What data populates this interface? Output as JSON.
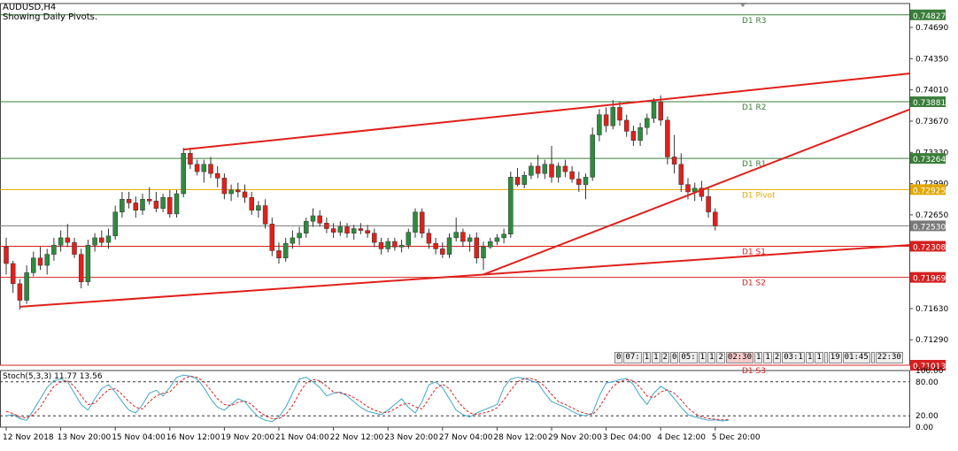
{
  "header": {
    "symbol": "AUDUSD,H4",
    "note": "Showing Daily Pivots."
  },
  "timer_boxes": [
    "0",
    "07:",
    "1",
    "1",
    "2",
    "0",
    "05:",
    "1",
    "1",
    "2",
    "02:30",
    "1",
    "1",
    "2",
    "03:1",
    "1",
    "1",
    "",
    "19",
    "01:45",
    "",
    "22:30"
  ],
  "colors": {
    "bull": "#2e8b3e",
    "bear": "#e0201b",
    "wick": "#333333",
    "pivot_resistance": "#3a7d3a",
    "pivot_level": "#e0a800",
    "pivot_support": "#d42020",
    "trendline": "#e0201b",
    "stoch_main": "#40a8c8",
    "stoch_signal": "#e02020",
    "current_price": "#7a7a7a"
  },
  "chart_data": {
    "type": "candlestick",
    "title": "AUDUSD,H4",
    "subtitle": "Showing Daily Pivots.",
    "ylim": [
      0.71013,
      0.7495
    ],
    "price_ticks": [
      "0.74690",
      "0.74350",
      "0.74010",
      "0.73670",
      "0.73330",
      "0.72990",
      "0.72650",
      "0.71630",
      "0.71290"
    ],
    "time_labels": [
      "12 Nov 2018",
      "13 Nov 20:00",
      "15 Nov 04:00",
      "16 Nov 12:00",
      "19 Nov 20:00",
      "21 Nov 04:00",
      "22 Nov 12:00",
      "23 Nov 20:00",
      "27 Nov 04:00",
      "28 Nov 12:00",
      "29 Nov 20:00",
      "3 Dec 04:00",
      "4 Dec 12:00",
      "5 Dec 20:00"
    ],
    "time_label_index": [
      0,
      8,
      16,
      24,
      32,
      40,
      48,
      56,
      64,
      72,
      80,
      88,
      96,
      104
    ],
    "pivots": [
      {
        "label": "D1 R3",
        "value": 0.74827,
        "kind": "resistance"
      },
      {
        "label": "D1 R2",
        "value": 0.73881,
        "kind": "resistance"
      },
      {
        "label": "D1 R1",
        "value": 0.73264,
        "kind": "resistance"
      },
      {
        "label": "D1 Pivot",
        "value": 0.72925,
        "kind": "pivot"
      },
      {
        "label": "D1 S1",
        "value": 0.72308,
        "kind": "support"
      },
      {
        "label": "D1 S2",
        "value": 0.71969,
        "kind": "support"
      },
      {
        "label": "D1 S3",
        "value": 0.71013,
        "kind": "support"
      }
    ],
    "current_price": "0.72530",
    "trendlines": [
      {
        "i1": 2,
        "p1": 0.7165,
        "i2": 70,
        "p2": 0.72,
        "extend": true
      },
      {
        "i1": 26,
        "p1": 0.7336,
        "i2": 98,
        "p2": 0.7392,
        "extend": true
      },
      {
        "i1": 70,
        "p1": 0.72,
        "i2": 102,
        "p2": 0.7292,
        "extend": true
      }
    ],
    "candles": [
      [
        0.723,
        0.724,
        0.72,
        0.7212
      ],
      [
        0.7212,
        0.7215,
        0.718,
        0.719
      ],
      [
        0.719,
        0.7195,
        0.7162,
        0.7172
      ],
      [
        0.7172,
        0.721,
        0.7168,
        0.7202
      ],
      [
        0.7202,
        0.7225,
        0.7198,
        0.7218
      ],
      [
        0.7218,
        0.723,
        0.7205,
        0.721
      ],
      [
        0.721,
        0.7228,
        0.72,
        0.7222
      ],
      [
        0.7222,
        0.724,
        0.7215,
        0.7232
      ],
      [
        0.7232,
        0.7248,
        0.7225,
        0.724
      ],
      [
        0.724,
        0.7255,
        0.723,
        0.7235
      ],
      [
        0.7235,
        0.724,
        0.7218,
        0.7222
      ],
      [
        0.7222,
        0.7228,
        0.7185,
        0.7192
      ],
      [
        0.7192,
        0.7238,
        0.7188,
        0.7232
      ],
      [
        0.7232,
        0.7245,
        0.7225,
        0.724
      ],
      [
        0.724,
        0.7248,
        0.723,
        0.7235
      ],
      [
        0.7235,
        0.725,
        0.7228,
        0.7242
      ],
      [
        0.7242,
        0.7275,
        0.7238,
        0.7268
      ],
      [
        0.7268,
        0.729,
        0.7262,
        0.7282
      ],
      [
        0.7282,
        0.729,
        0.7272,
        0.7278
      ],
      [
        0.7278,
        0.7285,
        0.7262,
        0.727
      ],
      [
        0.727,
        0.7288,
        0.7265,
        0.7282
      ],
      [
        0.7282,
        0.7295,
        0.7276,
        0.728
      ],
      [
        0.728,
        0.729,
        0.7268,
        0.7272
      ],
      [
        0.7272,
        0.7288,
        0.7268,
        0.7284
      ],
      [
        0.7284,
        0.7292,
        0.7262,
        0.7266
      ],
      [
        0.7266,
        0.7292,
        0.7262,
        0.7288
      ],
      [
        0.7288,
        0.7338,
        0.7284,
        0.7332
      ],
      [
        0.7332,
        0.7338,
        0.7315,
        0.732
      ],
      [
        0.732,
        0.7325,
        0.7308,
        0.7312
      ],
      [
        0.7312,
        0.7325,
        0.73,
        0.732
      ],
      [
        0.732,
        0.7328,
        0.7305,
        0.731
      ],
      [
        0.731,
        0.7318,
        0.7295,
        0.7305
      ],
      [
        0.7305,
        0.731,
        0.7282,
        0.7288
      ],
      [
        0.7288,
        0.7298,
        0.728,
        0.7292
      ],
      [
        0.7292,
        0.73,
        0.7284,
        0.729
      ],
      [
        0.729,
        0.7298,
        0.7278,
        0.7284
      ],
      [
        0.7284,
        0.729,
        0.7265,
        0.727
      ],
      [
        0.727,
        0.728,
        0.7262,
        0.7275
      ],
      [
        0.7275,
        0.7282,
        0.725,
        0.7255
      ],
      [
        0.7255,
        0.7262,
        0.722,
        0.7226
      ],
      [
        0.7226,
        0.7235,
        0.7212,
        0.7218
      ],
      [
        0.7218,
        0.724,
        0.7214,
        0.7234
      ],
      [
        0.7234,
        0.7248,
        0.7228,
        0.724
      ],
      [
        0.724,
        0.7252,
        0.7232,
        0.7245
      ],
      [
        0.7245,
        0.7262,
        0.724,
        0.7258
      ],
      [
        0.7258,
        0.7272,
        0.7252,
        0.7264
      ],
      [
        0.7264,
        0.727,
        0.7252,
        0.7256
      ],
      [
        0.7256,
        0.7262,
        0.7245,
        0.725
      ],
      [
        0.725,
        0.7256,
        0.724,
        0.7246
      ],
      [
        0.7246,
        0.7258,
        0.7242,
        0.7252
      ],
      [
        0.7252,
        0.7256,
        0.724,
        0.7245
      ],
      [
        0.7245,
        0.7254,
        0.7238,
        0.725
      ],
      [
        0.725,
        0.7256,
        0.7244,
        0.7248
      ],
      [
        0.7248,
        0.7254,
        0.724,
        0.7245
      ],
      [
        0.7245,
        0.725,
        0.723,
        0.7235
      ],
      [
        0.7235,
        0.724,
        0.7222,
        0.7228
      ],
      [
        0.7228,
        0.724,
        0.7224,
        0.7236
      ],
      [
        0.7236,
        0.724,
        0.7226,
        0.723
      ],
      [
        0.723,
        0.7238,
        0.7224,
        0.7232
      ],
      [
        0.7232,
        0.725,
        0.7228,
        0.7246
      ],
      [
        0.7246,
        0.7272,
        0.724,
        0.7268
      ],
      [
        0.7268,
        0.7272,
        0.724,
        0.7245
      ],
      [
        0.7245,
        0.725,
        0.7228,
        0.7234
      ],
      [
        0.7234,
        0.724,
        0.7222,
        0.7228
      ],
      [
        0.7228,
        0.7235,
        0.7218,
        0.7222
      ],
      [
        0.7222,
        0.7245,
        0.7218,
        0.724
      ],
      [
        0.724,
        0.7262,
        0.7236,
        0.7246
      ],
      [
        0.7246,
        0.725,
        0.723,
        0.7236
      ],
      [
        0.7236,
        0.7244,
        0.7225,
        0.724
      ],
      [
        0.724,
        0.7246,
        0.7212,
        0.7218
      ],
      [
        0.7218,
        0.7236,
        0.7205,
        0.723
      ],
      [
        0.723,
        0.724,
        0.7228,
        0.7236
      ],
      [
        0.7236,
        0.7244,
        0.7232,
        0.724
      ],
      [
        0.724,
        0.725,
        0.7234,
        0.7244
      ],
      [
        0.7244,
        0.7312,
        0.724,
        0.7306
      ],
      [
        0.7306,
        0.7316,
        0.7296,
        0.7298
      ],
      [
        0.7298,
        0.7312,
        0.7294,
        0.7308
      ],
      [
        0.7308,
        0.7322,
        0.7304,
        0.7318
      ],
      [
        0.7318,
        0.733,
        0.7305,
        0.731
      ],
      [
        0.731,
        0.7325,
        0.7304,
        0.732
      ],
      [
        0.732,
        0.734,
        0.73,
        0.7306
      ],
      [
        0.7306,
        0.7322,
        0.73,
        0.7318
      ],
      [
        0.7318,
        0.7325,
        0.7306,
        0.7312
      ],
      [
        0.7312,
        0.7318,
        0.73,
        0.7304
      ],
      [
        0.7304,
        0.7312,
        0.729,
        0.7298
      ],
      [
        0.7298,
        0.731,
        0.7282,
        0.7306
      ],
      [
        0.7306,
        0.736,
        0.7302,
        0.7352
      ],
      [
        0.7352,
        0.738,
        0.7345,
        0.7374
      ],
      [
        0.7374,
        0.7382,
        0.7355,
        0.7362
      ],
      [
        0.7362,
        0.739,
        0.7358,
        0.7382
      ],
      [
        0.7382,
        0.7388,
        0.7362,
        0.7368
      ],
      [
        0.7368,
        0.7374,
        0.735,
        0.7356
      ],
      [
        0.7356,
        0.7362,
        0.734,
        0.7346
      ],
      [
        0.7346,
        0.7365,
        0.734,
        0.736
      ],
      [
        0.736,
        0.7375,
        0.7352,
        0.737
      ],
      [
        0.737,
        0.7392,
        0.7365,
        0.7388
      ],
      [
        0.7388,
        0.7395,
        0.7362,
        0.7368
      ],
      [
        0.7368,
        0.7372,
        0.732,
        0.7328
      ],
      [
        0.7328,
        0.7352,
        0.731,
        0.732
      ],
      [
        0.732,
        0.7332,
        0.729,
        0.7298
      ],
      [
        0.7298,
        0.7305,
        0.7282,
        0.729
      ],
      [
        0.729,
        0.73,
        0.728,
        0.7294
      ],
      [
        0.7294,
        0.7302,
        0.728,
        0.7285
      ],
      [
        0.7285,
        0.7295,
        0.7262,
        0.7268
      ],
      [
        0.7268,
        0.7272,
        0.7248,
        0.7253
      ]
    ],
    "stochastic": {
      "label": "Stoch(5,3,3) 11.77 13.56",
      "ylim": [
        0,
        100
      ],
      "ticks": [
        "100.00",
        "80.00",
        "20.00",
        "0.00"
      ],
      "levels": [
        80,
        20
      ],
      "main": [
        20,
        22,
        15,
        12,
        30,
        50,
        70,
        82,
        85,
        80,
        60,
        40,
        30,
        50,
        68,
        75,
        62,
        45,
        30,
        25,
        40,
        60,
        65,
        55,
        70,
        88,
        92,
        90,
        85,
        70,
        50,
        35,
        30,
        40,
        50,
        45,
        30,
        18,
        12,
        10,
        18,
        35,
        60,
        85,
        88,
        80,
        70,
        55,
        60,
        62,
        55,
        45,
        35,
        28,
        25,
        22,
        30,
        40,
        50,
        35,
        25,
        45,
        75,
        80,
        70,
        50,
        30,
        22,
        18,
        25,
        30,
        35,
        40,
        70,
        85,
        88,
        86,
        82,
        78,
        60,
        45,
        40,
        35,
        28,
        22,
        20,
        25,
        55,
        78,
        80,
        84,
        86,
        75,
        55,
        40,
        60,
        72,
        65,
        50,
        35,
        22,
        18,
        15,
        12,
        13,
        11,
        12
      ],
      "signal": [
        28,
        24,
        18,
        16,
        22,
        35,
        55,
        72,
        80,
        82,
        72,
        55,
        40,
        42,
        55,
        66,
        68,
        58,
        45,
        35,
        32,
        45,
        55,
        60,
        62,
        75,
        85,
        90,
        88,
        80,
        65,
        50,
        40,
        38,
        44,
        46,
        40,
        28,
        20,
        15,
        15,
        22,
        38,
        60,
        78,
        84,
        82,
        72,
        62,
        60,
        58,
        52,
        45,
        36,
        30,
        26,
        26,
        32,
        40,
        42,
        36,
        32,
        50,
        68,
        76,
        68,
        50,
        35,
        25,
        22,
        25,
        28,
        34,
        48,
        65,
        80,
        86,
        86,
        82,
        72,
        58,
        45,
        40,
        34,
        28,
        24,
        22,
        35,
        55,
        72,
        80,
        84,
        82,
        70,
        55,
        52,
        62,
        66,
        60,
        48,
        34,
        24,
        18,
        15,
        14,
        13,
        13.56
      ]
    }
  }
}
